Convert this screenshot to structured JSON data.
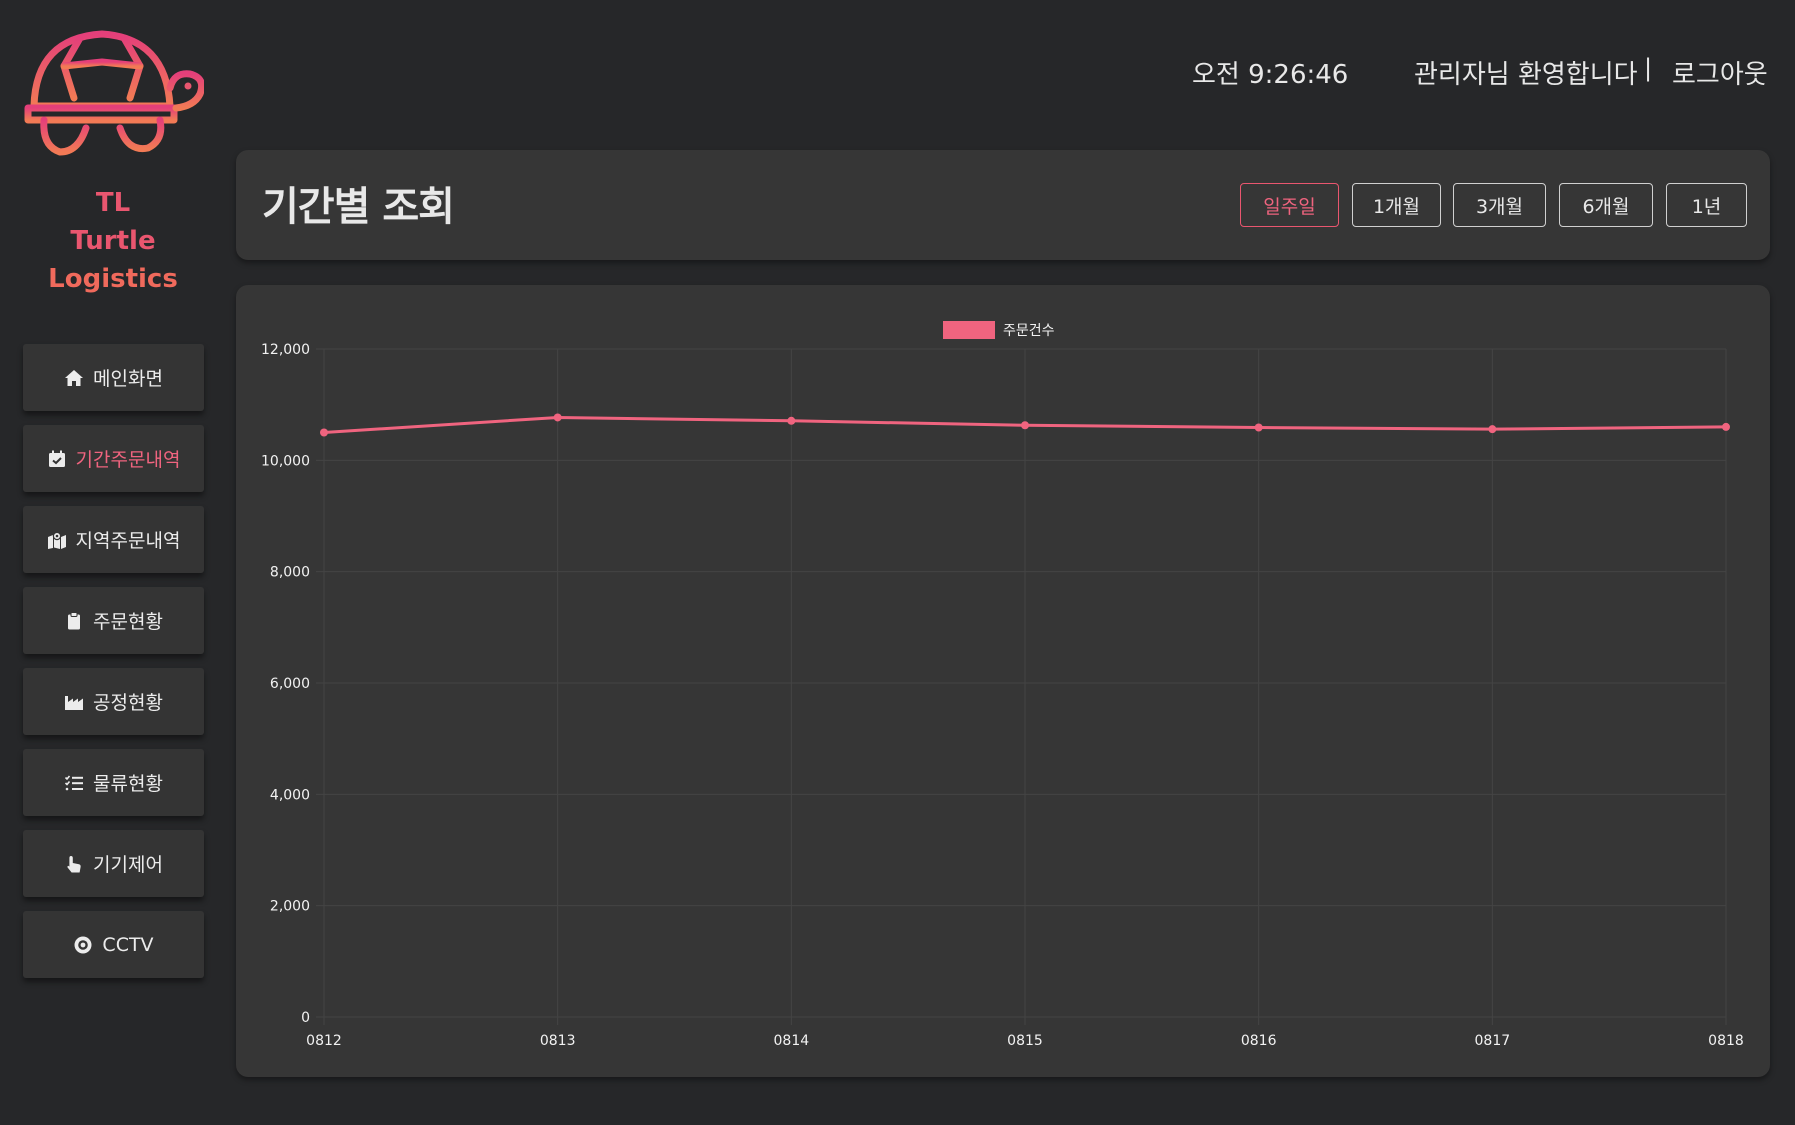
{
  "brand": {
    "line1": "TL",
    "line2": "Turtle",
    "line3": "Logistics"
  },
  "colors": {
    "accent": "#f0647f",
    "background": "#262729",
    "panel": "#363636"
  },
  "sidebar": {
    "items": [
      {
        "label": "메인화면",
        "icon": "home-icon",
        "active": false
      },
      {
        "label": "기간주문내역",
        "icon": "calendar-check-icon",
        "active": true
      },
      {
        "label": "지역주문내역",
        "icon": "map-location-icon",
        "active": false
      },
      {
        "label": "주문현황",
        "icon": "clipboard-icon",
        "active": false
      },
      {
        "label": "공정현황",
        "icon": "factory-icon",
        "active": false
      },
      {
        "label": "물류현황",
        "icon": "checklist-icon",
        "active": false
      },
      {
        "label": "기기제어",
        "icon": "hand-pointer-icon",
        "active": false
      },
      {
        "label": "CCTV",
        "icon": "camera-lens-icon",
        "active": false
      }
    ]
  },
  "header": {
    "clock": "오전 9:26:46",
    "welcome": "관리자님 환영합니다",
    "separator": "|",
    "logout": "로그아웃"
  },
  "period": {
    "title": "기간별 조회",
    "buttons": [
      {
        "label": "일주일",
        "active": true
      },
      {
        "label": "1개월",
        "active": false
      },
      {
        "label": "3개월",
        "active": false
      },
      {
        "label": "6개월",
        "active": false
      },
      {
        "label": "1년",
        "active": false
      }
    ]
  },
  "chart_data": {
    "type": "line",
    "x": [
      "0812",
      "0813",
      "0814",
      "0815",
      "0816",
      "0817",
      "0818"
    ],
    "series": [
      {
        "name": "주문건수",
        "color": "#f0647f",
        "values": [
          10500,
          10770,
          10710,
          10630,
          10590,
          10560,
          10600
        ]
      }
    ],
    "ylim": [
      0,
      12000
    ],
    "yticks": [
      "0",
      "2,000",
      "4,000",
      "6,000",
      "8,000",
      "10,000",
      "12,000"
    ],
    "grid": true,
    "legend": "top-center"
  }
}
